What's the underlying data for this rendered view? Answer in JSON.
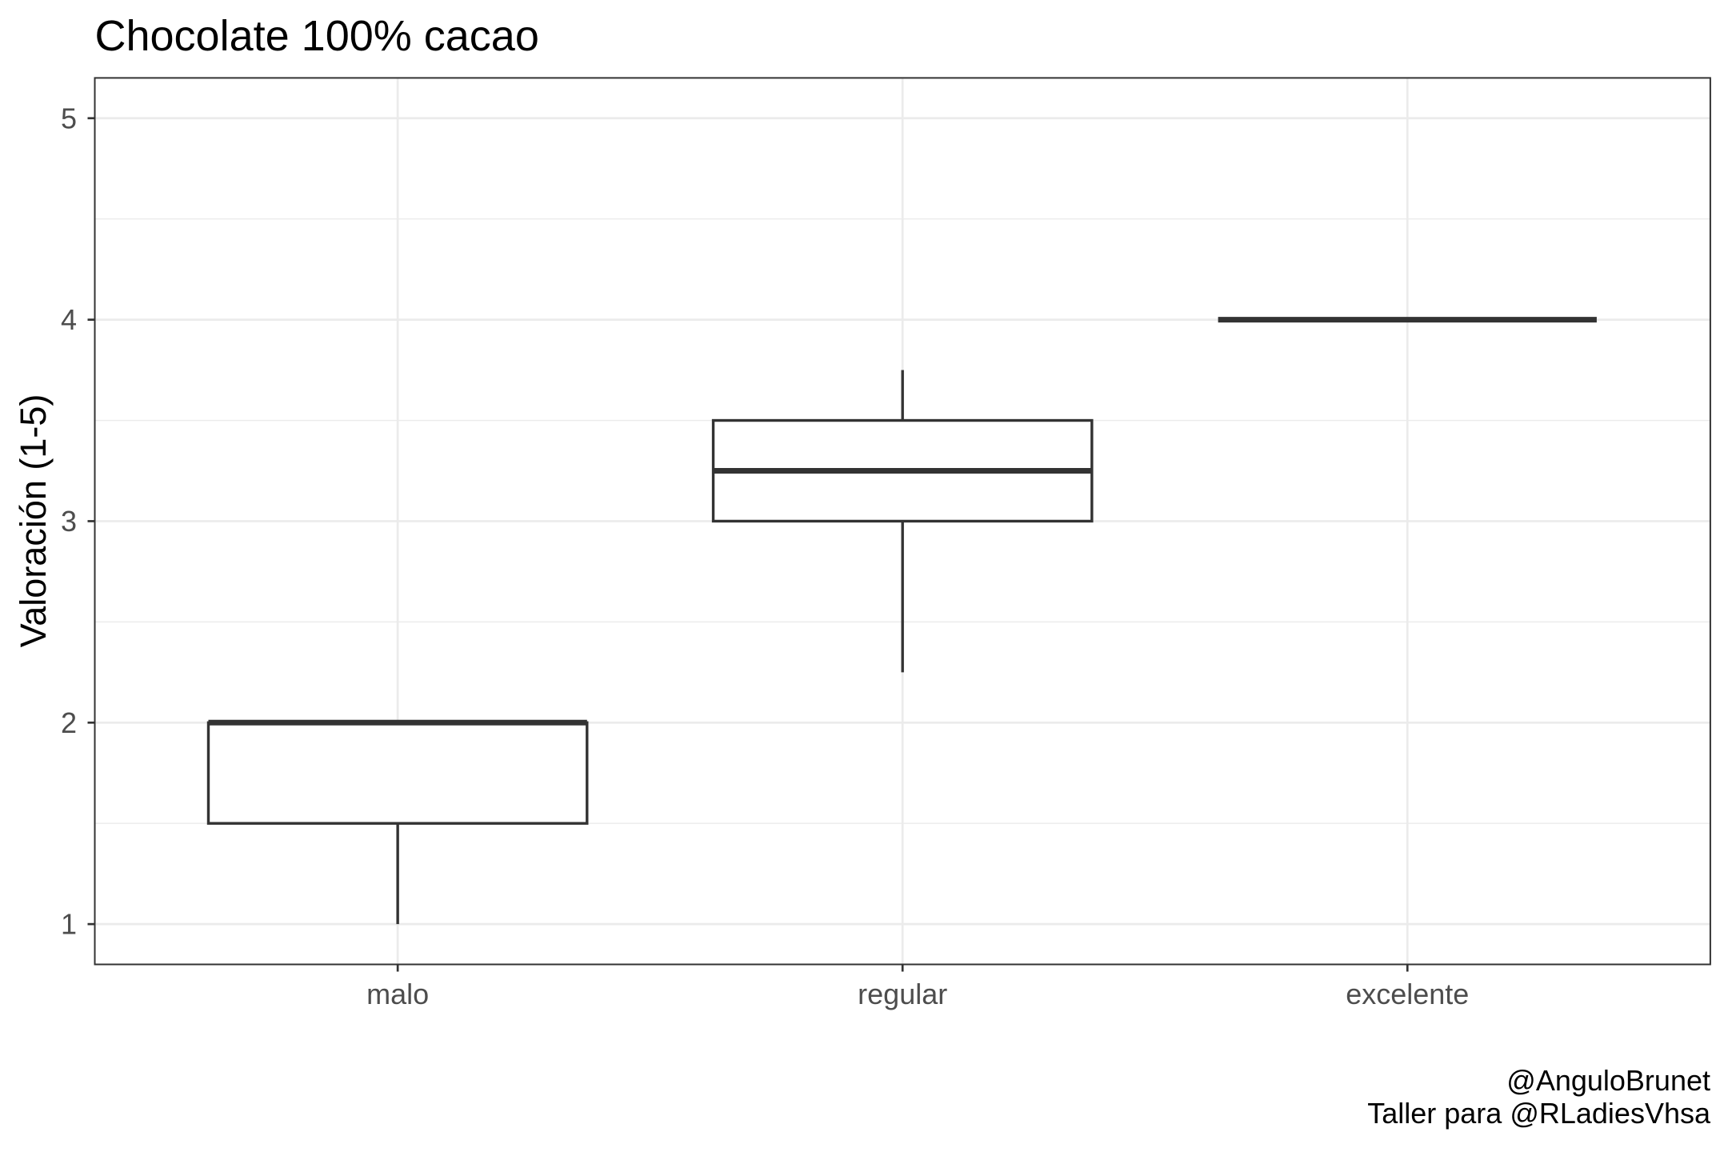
{
  "chart_data": {
    "type": "boxplot",
    "title": "Chocolate 100% cacao",
    "xlabel": "",
    "ylabel": "Valoración (1-5)",
    "categories": [
      "malo",
      "regular",
      "excelente"
    ],
    "boxes": [
      {
        "category": "malo",
        "min": 1,
        "q1": 1.5,
        "median": 2,
        "q3": 2,
        "max": 2
      },
      {
        "category": "regular",
        "min": 2.25,
        "q1": 3,
        "median": 3.25,
        "q3": 3.5,
        "max": 3.75
      },
      {
        "category": "excelente",
        "min": 4,
        "q1": 4,
        "median": 4,
        "q3": 4,
        "max": 4
      }
    ],
    "yticks": [
      1,
      2,
      3,
      4,
      5
    ],
    "ylim": [
      0.8,
      5.2
    ],
    "grid": true,
    "caption": [
      "@AnguloBrunet",
      "Taller para @RLadiesVhsa"
    ],
    "colors": {
      "box_stroke": "#333333",
      "box_fill": "#FFFFFF",
      "grid": "#EBEBEB",
      "border": "#333333",
      "tick_text": "#4D4D4D",
      "text": "#000000"
    }
  }
}
